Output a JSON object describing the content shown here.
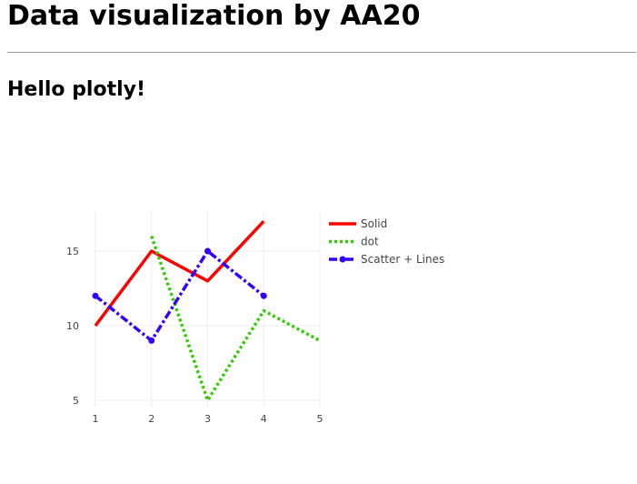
{
  "page": {
    "heading": "Data visualization by AA20",
    "subheading": "Hello plotly!"
  },
  "chart_data": {
    "type": "line",
    "title": "",
    "xlabel": "",
    "ylabel": "",
    "xlim": [
      0.95,
      5
    ],
    "ylim": [
      4.5,
      17.5
    ],
    "x_ticks": [
      1,
      2,
      3,
      4,
      5
    ],
    "y_ticks": [
      5,
      10,
      15
    ],
    "grid": true,
    "legend_position": "top-right",
    "series": [
      {
        "name": "Solid",
        "mode": "lines",
        "dash": "solid",
        "color": "#ff0000",
        "x": [
          1,
          2,
          3,
          4
        ],
        "y": [
          10,
          15,
          13,
          17
        ]
      },
      {
        "name": "dot",
        "mode": "lines",
        "dash": "dot",
        "color": "#33cc00",
        "x": [
          2,
          3,
          4,
          5
        ],
        "y": [
          16,
          5,
          11,
          9
        ]
      },
      {
        "name": "Scatter + Lines",
        "mode": "lines+markers",
        "dash": "dashdot",
        "color": "#3300ff",
        "x": [
          1,
          2,
          3,
          4
        ],
        "y": [
          12,
          9,
          15,
          12
        ]
      }
    ]
  }
}
